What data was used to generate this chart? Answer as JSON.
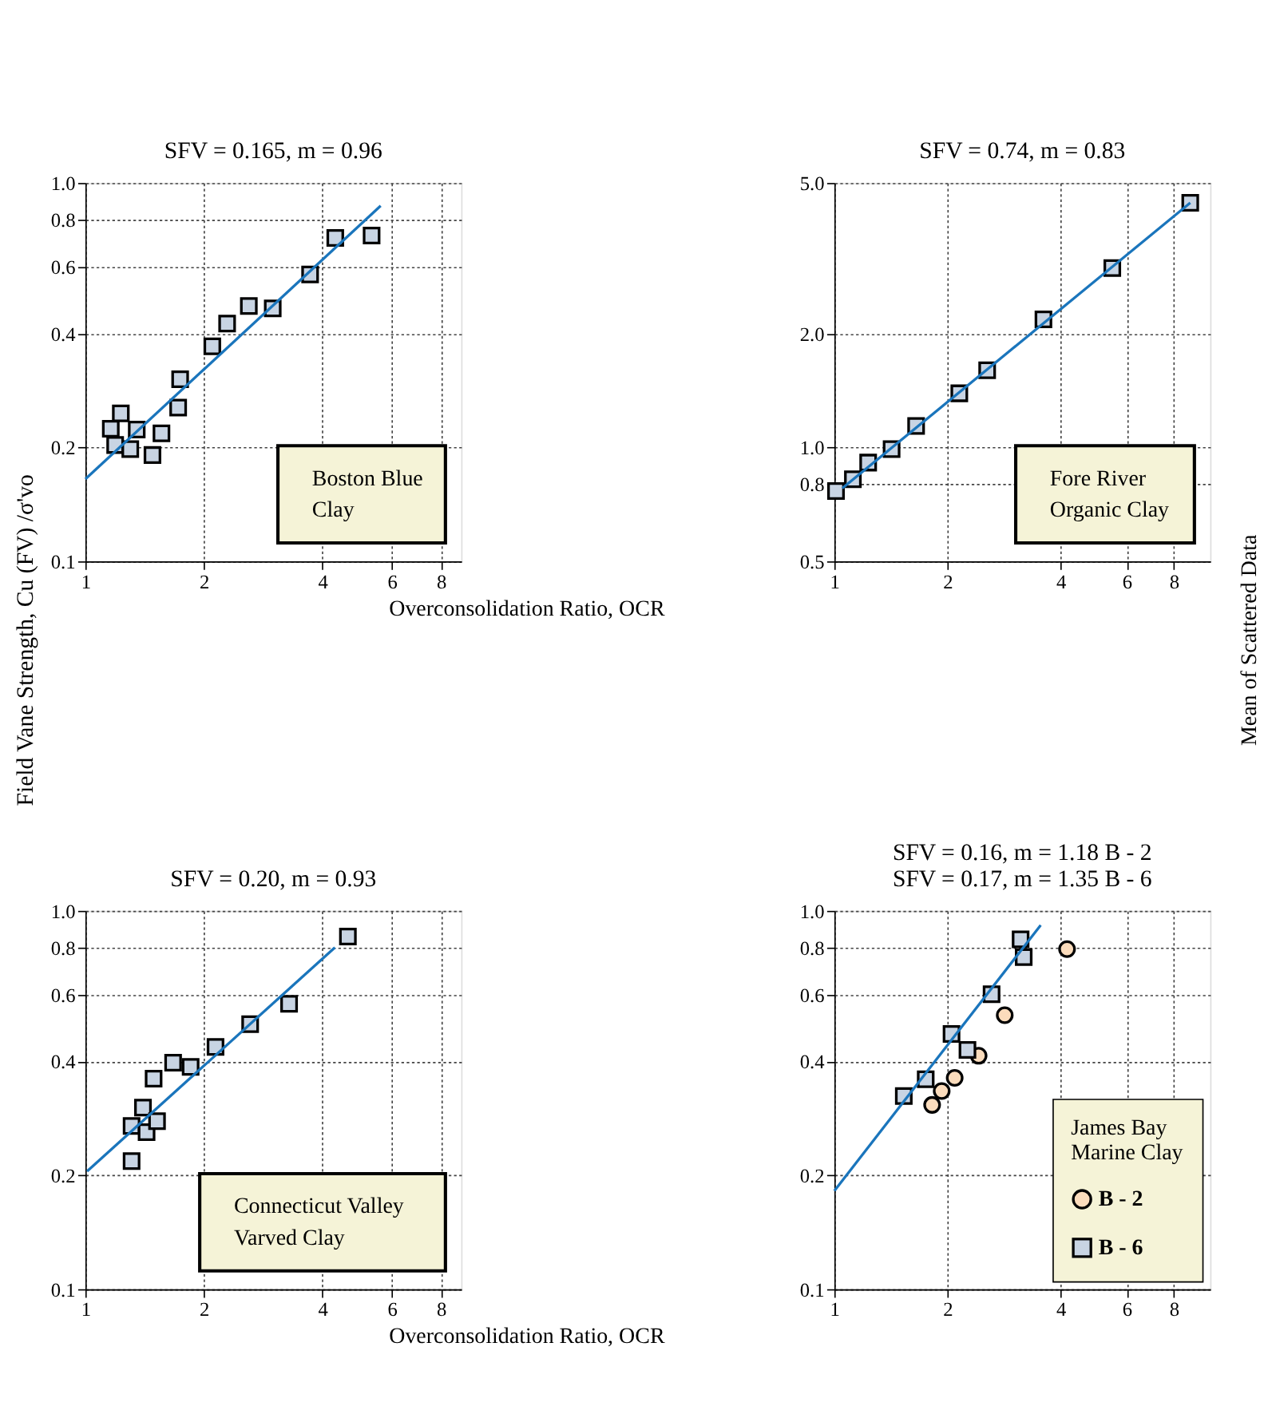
{
  "chart_data": [
    {
      "type": "scatter",
      "title": "SFV = 0.165, m = 0.96",
      "xlabel": "Overconsolidation Ratio, OCR",
      "ylabel": "Field Vane Strength, Cu (FV) /σ'vo",
      "log": "xy",
      "grid": true,
      "xlim": [
        1,
        9
      ],
      "xticks": [
        1,
        2,
        4,
        6,
        8
      ],
      "ylim": [
        0.1,
        1.0
      ],
      "yticks": [
        0.1,
        0.2,
        0.4,
        0.6,
        0.8,
        {
          "value": 1.0,
          "label": "1.0"
        }
      ],
      "annotations": [
        "Boston Blue\nClay"
      ],
      "series": [
        {
          "marker": "square",
          "color": "#c8d4e3",
          "x": [
            1.16,
            1.23,
            1.19,
            1.35,
            1.3,
            1.48,
            1.56,
            1.72,
            1.74,
            2.1,
            2.29,
            2.6,
            2.99,
            3.72,
            4.31,
            5.33
          ],
          "values": [
            0.224,
            0.246,
            0.203,
            0.223,
            0.198,
            0.191,
            0.218,
            0.255,
            0.303,
            0.37,
            0.425,
            0.473,
            0.466,
            0.573,
            0.716,
            0.726
          ]
        },
        {
          "type": "line",
          "color": "#1a75bc",
          "x": [
            1.0,
            5.62
          ],
          "values": [
            0.165,
            0.87
          ]
        }
      ]
    },
    {
      "type": "scatter",
      "title": "SFV = 0.74, m = 0.83",
      "log": "xy",
      "grid": true,
      "xlim": [
        1,
        10
      ],
      "xticks": [
        1,
        2,
        4,
        6,
        8
      ],
      "ylim": [
        0.5,
        5.0
      ],
      "yticks": [
        0.5,
        0.8,
        {
          "value": 1.0,
          "label": "1.0"
        },
        {
          "value": 2.0,
          "label": "2.0"
        },
        {
          "value": 5.0,
          "label": "5.0"
        }
      ],
      "annotations": [
        "Fore River\nOrganic Clay",
        "Mean of Scattered Data"
      ],
      "series": [
        {
          "marker": "square",
          "color": "#c8d4e3",
          "x": [
            1.01,
            1.12,
            1.23,
            1.42,
            1.65,
            2.15,
            2.55,
            3.6,
            5.49,
            8.85
          ],
          "values": [
            0.767,
            0.824,
            0.912,
            0.99,
            1.14,
            1.39,
            1.6,
            2.18,
            2.98,
            4.43
          ]
        },
        {
          "type": "line",
          "color": "#1a75bc",
          "x": [
            1.05,
            8.85
          ],
          "values": [
            0.78,
            4.43
          ]
        }
      ]
    },
    {
      "type": "scatter",
      "title": "SFV = 0.20, m = 0.93",
      "xlabel": "Overconsolidation Ratio, OCR",
      "log": "xy",
      "grid": true,
      "xlim": [
        1,
        9
      ],
      "xticks": [
        1,
        2,
        4,
        6,
        8
      ],
      "ylim": [
        0.1,
        1.0
      ],
      "yticks": [
        0.1,
        0.2,
        0.4,
        0.6,
        0.8,
        {
          "value": 1.0,
          "label": "1.0"
        }
      ],
      "annotations": [
        "Connecticut Valley\nVarved Clay"
      ],
      "series": [
        {
          "marker": "square",
          "color": "#c8d4e3",
          "x": [
            1.31,
            1.4,
            1.31,
            1.43,
            1.52,
            1.49,
            1.67,
            1.85,
            2.14,
            2.62,
            3.29,
            4.64
          ],
          "values": [
            0.27,
            0.302,
            0.218,
            0.26,
            0.278,
            0.36,
            0.397,
            0.387,
            0.437,
            0.502,
            0.568,
            0.855
          ]
        },
        {
          "type": "line",
          "color": "#1a75bc",
          "x": [
            1.01,
            4.3
          ],
          "values": [
            0.205,
            0.8
          ]
        }
      ]
    },
    {
      "type": "scatter",
      "title": "SFV = 0.16,  m = 1.18   B - 2\nSFV = 0.17,  m = 1.35   B - 6",
      "log": "xy",
      "grid": true,
      "legend": "bottom right",
      "legend_title": "James Bay\nMarine Clay",
      "xlim": [
        1,
        10
      ],
      "xticks": [
        1,
        2,
        4,
        6,
        8
      ],
      "ylim": [
        0.1,
        1.0
      ],
      "yticks": [
        0.1,
        0.2,
        0.4,
        0.6,
        0.8,
        {
          "value": 1.0,
          "label": "1.0"
        }
      ],
      "series": [
        {
          "name": "B - 2",
          "marker": "circle",
          "color": "#fbdcbc",
          "x": [
            1.82,
            1.93,
            2.09,
            2.42,
            2.84,
            4.16
          ],
          "values": [
            0.307,
            0.334,
            0.362,
            0.414,
            0.53,
            0.792
          ]
        },
        {
          "name": "B - 6",
          "marker": "square",
          "color": "#c8d4e3",
          "x": [
            1.53,
            1.75,
            2.05,
            2.26,
            2.62,
            3.13,
            3.19
          ],
          "values": [
            0.324,
            0.359,
            0.473,
            0.429,
            0.602,
            0.841,
            0.755
          ]
        },
        {
          "type": "line",
          "color": "#1a75bc",
          "x": [
            1.0,
            3.54
          ],
          "values": [
            0.182,
            0.917
          ]
        }
      ]
    }
  ]
}
